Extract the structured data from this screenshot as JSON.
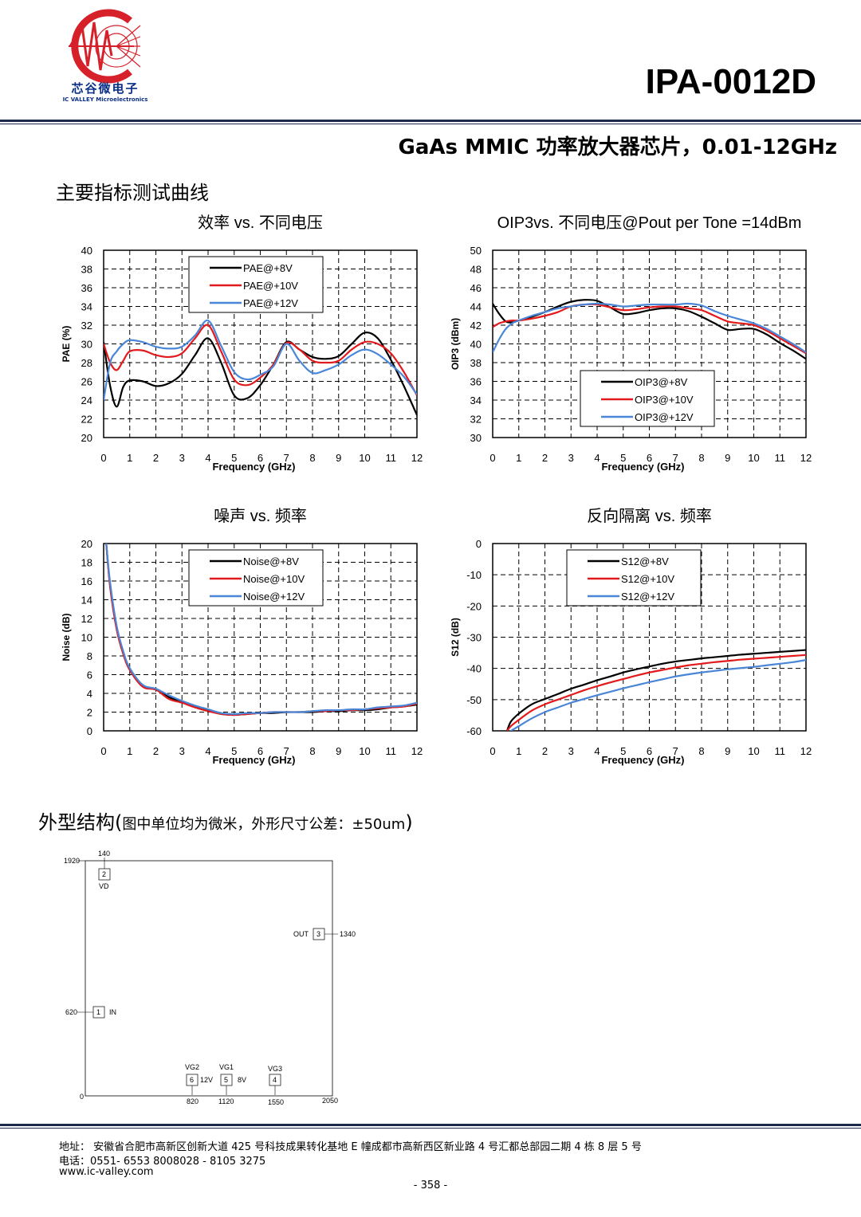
{
  "header": {
    "logo_cn": "芯谷微电子",
    "logo_en": "IC VALLEY Microelectronics",
    "part_number": "IPA-0012D",
    "subtitle": "GaAs MMIC 功率放大器芯片，0.01-12GHz",
    "colors": {
      "brand_red": "#d6202a",
      "brand_blue": "#0a2f86",
      "rule": "#1b2a4a"
    }
  },
  "section_curves": "主要指标测试曲线",
  "section_outline": {
    "main": "外型结构(",
    "detail": "图中单位均为微米，外形尺寸公差：±50um",
    "close": ")"
  },
  "chart_data": [
    {
      "type": "line",
      "title": "效率 vs. 不同电压",
      "xlabel": "Frequency (GHz)",
      "ylabel": "PAE (%)",
      "xlim": [
        0,
        12
      ],
      "ylim": [
        20,
        40
      ],
      "xticks": [
        0,
        1,
        2,
        3,
        4,
        5,
        6,
        7,
        8,
        9,
        10,
        11,
        12
      ],
      "yticks": [
        20,
        22,
        24,
        26,
        28,
        30,
        32,
        34,
        36,
        38,
        40
      ],
      "grid": true,
      "legend": "top-center",
      "x": [
        0,
        0.25,
        0.5,
        0.75,
        1,
        1.5,
        2,
        2.5,
        3,
        3.5,
        4,
        4.5,
        5,
        5.5,
        6,
        6.5,
        7,
        7.5,
        8,
        8.5,
        9,
        9.5,
        10,
        10.5,
        11,
        11.5,
        12
      ],
      "series": [
        {
          "name": "PAE@+8V",
          "color": "#000000",
          "values": [
            30.2,
            25.5,
            23.3,
            25.4,
            26.1,
            26.0,
            25.5,
            25.8,
            26.8,
            28.8,
            30.6,
            28.0,
            24.5,
            24.2,
            25.6,
            27.8,
            30.2,
            29.4,
            28.6,
            28.4,
            28.7,
            30.0,
            31.2,
            30.6,
            28.3,
            25.5,
            22.4
          ]
        },
        {
          "name": "PAE@+10V",
          "color": "#e31a1c",
          "values": [
            30.0,
            28.0,
            27.2,
            28.2,
            29.2,
            29.3,
            28.8,
            28.6,
            29.0,
            30.6,
            32.0,
            29.2,
            26.2,
            25.6,
            26.4,
            27.8,
            30.1,
            29.4,
            28.2,
            28.0,
            28.2,
            29.4,
            30.2,
            30.0,
            29.0,
            27.0,
            24.5
          ]
        },
        {
          "name": "PAE@+12V",
          "color": "#4a86d8",
          "values": [
            24.0,
            28.0,
            29.2,
            30.0,
            30.4,
            30.2,
            29.7,
            29.5,
            29.7,
            30.9,
            32.5,
            29.8,
            27.0,
            26.2,
            26.7,
            27.6,
            30.0,
            28.2,
            26.9,
            27.2,
            27.8,
            28.8,
            29.4,
            28.9,
            27.8,
            26.5,
            24.6
          ]
        }
      ]
    },
    {
      "type": "line",
      "title": "OIP3vs. 不同电压@Pout per Tone =14dBm",
      "xlabel": "Frequency (GHz)",
      "ylabel": "OIP3 (dBm)",
      "xlim": [
        0,
        12
      ],
      "ylim": [
        30,
        50
      ],
      "xticks": [
        0,
        1,
        2,
        3,
        4,
        5,
        6,
        7,
        8,
        9,
        10,
        11,
        12
      ],
      "yticks": [
        30,
        32,
        34,
        36,
        38,
        40,
        42,
        44,
        46,
        48,
        50
      ],
      "grid": true,
      "legend": "bottom-center",
      "x": [
        0,
        0.25,
        0.5,
        0.75,
        1,
        1.5,
        2,
        2.5,
        3,
        3.5,
        4,
        4.5,
        5,
        5.5,
        6,
        6.5,
        7,
        7.5,
        8,
        8.5,
        9,
        9.5,
        10,
        10.5,
        11,
        11.5,
        12
      ],
      "series": [
        {
          "name": "OIP3@+8V",
          "color": "#000000",
          "values": [
            44.3,
            43.2,
            42.4,
            42.3,
            42.5,
            42.9,
            43.4,
            44.0,
            44.5,
            44.7,
            44.6,
            43.9,
            43.2,
            43.3,
            43.6,
            43.8,
            43.8,
            43.5,
            42.9,
            42.2,
            41.5,
            41.6,
            41.6,
            41.0,
            40.1,
            39.3,
            38.4
          ]
        },
        {
          "name": "OIP3@+10V",
          "color": "#e31a1c",
          "values": [
            41.8,
            42.2,
            42.4,
            42.5,
            42.5,
            42.7,
            43.0,
            43.4,
            44.0,
            44.2,
            44.2,
            43.9,
            43.6,
            43.7,
            43.9,
            44.0,
            44.0,
            43.8,
            43.6,
            43.0,
            42.4,
            42.2,
            42.0,
            41.4,
            40.6,
            39.8,
            39.0
          ]
        },
        {
          "name": "OIP3@+12V",
          "color": "#4a86d8",
          "values": [
            39.1,
            40.5,
            41.6,
            42.2,
            42.5,
            43.0,
            43.4,
            43.8,
            44.0,
            44.2,
            44.3,
            44.2,
            44.0,
            44.1,
            44.2,
            44.2,
            44.2,
            44.3,
            44.1,
            43.5,
            43.0,
            42.6,
            42.2,
            41.6,
            40.8,
            40.0,
            39.1
          ]
        }
      ]
    },
    {
      "type": "line",
      "title": "噪声 vs. 频率",
      "xlabel": "Frequency (GHz)",
      "ylabel": "Noise (dB)",
      "xlim": [
        0,
        12
      ],
      "ylim": [
        0,
        20
      ],
      "xticks": [
        0,
        1,
        2,
        3,
        4,
        5,
        6,
        7,
        8,
        9,
        10,
        11,
        12
      ],
      "yticks": [
        0,
        2,
        4,
        6,
        8,
        10,
        12,
        14,
        16,
        18,
        20
      ],
      "grid": true,
      "legend": "top-center",
      "x": [
        0.1,
        0.25,
        0.5,
        0.75,
        1,
        1.5,
        2,
        2.5,
        3,
        3.5,
        4,
        4.5,
        5,
        5.5,
        6,
        6.5,
        7,
        7.5,
        8,
        8.5,
        9,
        9.5,
        10,
        10.5,
        11,
        11.5,
        12
      ],
      "series": [
        {
          "name": "Noise@+8V",
          "color": "#000000",
          "values": [
            20,
            15.5,
            11.0,
            8.3,
            6.6,
            4.8,
            4.4,
            3.6,
            3.1,
            2.6,
            2.2,
            1.8,
            1.7,
            1.8,
            1.9,
            1.9,
            2.0,
            2.0,
            2.0,
            2.1,
            2.1,
            2.2,
            2.2,
            2.3,
            2.5,
            2.6,
            2.8
          ]
        },
        {
          "name": "Noise@+10V",
          "color": "#e31a1c",
          "values": [
            20,
            15.3,
            10.8,
            8.2,
            6.5,
            4.7,
            4.4,
            3.4,
            3.0,
            2.5,
            2.1,
            1.8,
            1.7,
            1.8,
            1.9,
            2.0,
            2.0,
            2.0,
            2.1,
            2.1,
            2.2,
            2.2,
            2.3,
            2.4,
            2.5,
            2.6,
            2.9
          ]
        },
        {
          "name": "Noise@+12V",
          "color": "#4a86d8",
          "values": [
            20,
            15.8,
            11.2,
            8.5,
            6.7,
            4.9,
            4.5,
            3.8,
            3.2,
            2.7,
            2.3,
            1.9,
            1.8,
            1.9,
            1.9,
            2.0,
            2.0,
            2.0,
            2.1,
            2.2,
            2.2,
            2.3,
            2.3,
            2.5,
            2.6,
            2.7,
            3.0
          ]
        }
      ]
    },
    {
      "type": "line",
      "title": "反向隔离 vs. 频率",
      "xlabel": "Frequency (GHz)",
      "ylabel": "S12 (dB)",
      "xlim": [
        0,
        12
      ],
      "ylim": [
        -60,
        0
      ],
      "xticks": [
        0,
        1,
        2,
        3,
        4,
        5,
        6,
        7,
        8,
        9,
        10,
        11,
        12
      ],
      "yticks": [
        -60,
        -50,
        -40,
        -30,
        -20,
        -10,
        0
      ],
      "grid": true,
      "legend": "top-center",
      "x": [
        0.55,
        0.7,
        1,
        1.5,
        2,
        2.5,
        3,
        3.5,
        4,
        4.5,
        5,
        5.5,
        6,
        6.5,
        7,
        7.5,
        8,
        8.5,
        9,
        9.5,
        10,
        10.5,
        11,
        11.5,
        12
      ],
      "series": [
        {
          "name": "S12@+8V",
          "color": "#000000",
          "values": [
            -60,
            -57,
            -54.5,
            -51.5,
            -49.8,
            -48.2,
            -46.5,
            -45.2,
            -43.8,
            -42.6,
            -41.3,
            -40.3,
            -39.4,
            -38.5,
            -37.8,
            -37.3,
            -36.8,
            -36.4,
            -36.0,
            -35.6,
            -35.3,
            -35.0,
            -34.7,
            -34.4,
            -34.1
          ]
        },
        {
          "name": "S12@+10V",
          "color": "#e31a1c",
          "values": [
            -60,
            -58.5,
            -56.5,
            -53.5,
            -51.5,
            -50.0,
            -48.5,
            -47.0,
            -45.7,
            -44.5,
            -43.4,
            -42.3,
            -41.3,
            -40.5,
            -39.7,
            -39.0,
            -38.5,
            -38.0,
            -37.6,
            -37.2,
            -36.9,
            -36.6,
            -36.3,
            -36.0,
            -35.7
          ]
        },
        {
          "name": "S12@+12V",
          "color": "#4a86d8",
          "values": [
            -61,
            -60,
            -58.5,
            -56,
            -54,
            -52.5,
            -51.0,
            -49.8,
            -48.6,
            -47.5,
            -46.4,
            -45.4,
            -44.4,
            -43.5,
            -42.6,
            -41.9,
            -41.3,
            -40.8,
            -40.3,
            -39.9,
            -39.5,
            -39.0,
            -38.5,
            -38.0,
            -37.3
          ]
        }
      ]
    }
  ],
  "outline": {
    "pads": [
      {
        "num": "2",
        "label": "VD",
        "coord": "140"
      },
      {
        "num": "3",
        "label": "OUT",
        "coord": "1340"
      },
      {
        "num": "1",
        "label": "IN",
        "coord": "620"
      },
      {
        "num": "6",
        "label": "VG2",
        "side": "12V",
        "coord": "820"
      },
      {
        "num": "5",
        "label": "VG1",
        "side": "8V",
        "coord": "1120"
      },
      {
        "num": "4",
        "label": "VG3",
        "coord": "1550"
      }
    ],
    "y_top": "1920",
    "origin": "0",
    "x_right": "2050"
  },
  "footer": {
    "address": "地址：  安徽省合肥市高新区创新大道 425 号科技成果转化基地 E 幢成都市高新西区新业路 4 号汇都总部园二期 4 栋 8 层 5 号",
    "phone": "电话：0551- 6553 8008028 - 8105 3275",
    "web": "www.ic-valley.com",
    "page": "- 358 -"
  }
}
